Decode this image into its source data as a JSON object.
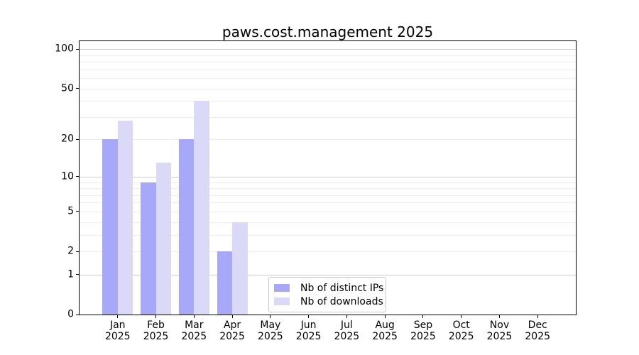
{
  "chart_data": {
    "type": "bar",
    "title": "paws.cost.management 2025",
    "year_label": "2025",
    "categories": [
      "Jan",
      "Feb",
      "Mar",
      "Apr",
      "May",
      "Jun",
      "Jul",
      "Aug",
      "Sep",
      "Oct",
      "Nov",
      "Dec"
    ],
    "series": [
      {
        "name": "Nb of distinct IPs",
        "color": "#a8a8f8",
        "values": [
          20,
          9,
          20,
          2,
          0,
          0,
          0,
          0,
          0,
          0,
          0,
          0
        ]
      },
      {
        "name": "Nb of downloads",
        "color": "#dadaf8",
        "values": [
          28,
          13,
          40,
          4,
          0,
          0,
          0,
          0,
          0,
          0,
          0,
          0
        ]
      }
    ],
    "yscale": "log1p",
    "ylim": [
      0,
      115
    ],
    "yticks": [
      0,
      1,
      2,
      5,
      10,
      20,
      50,
      100
    ],
    "grid_minor": [
      2,
      3,
      4,
      5,
      6,
      7,
      8,
      9,
      20,
      30,
      40,
      50,
      60,
      70,
      80,
      90
    ],
    "grid_major": [
      1,
      10,
      100
    ],
    "legend_position": "lower center",
    "colors": {
      "grid_minor": "#ececec",
      "grid_major": "#cccccc",
      "spine": "#000000",
      "text": "#000000"
    }
  }
}
